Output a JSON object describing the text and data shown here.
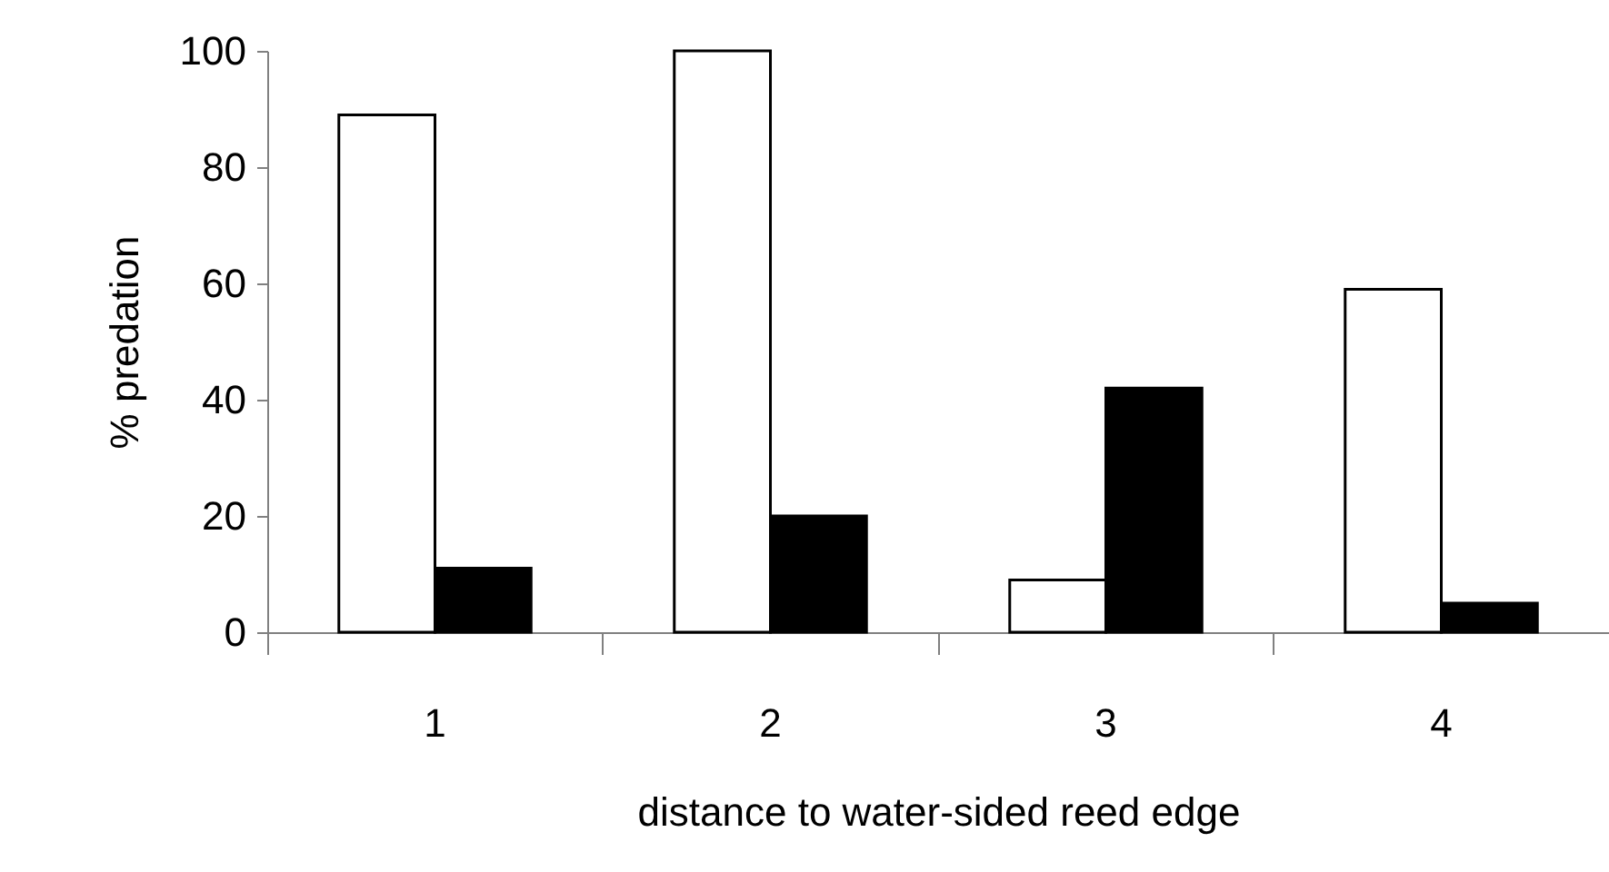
{
  "chart_data": {
    "type": "bar",
    "xlabel": "distance to water-sided reed edge",
    "ylabel": "% predation",
    "categories": [
      "1",
      "2",
      "3",
      "4"
    ],
    "series": [
      {
        "color": "#ffffff",
        "values": [
          89,
          100,
          9,
          59
        ]
      },
      {
        "color": "#000000",
        "values": [
          11,
          20,
          42,
          5
        ]
      }
    ],
    "ylim": [
      0,
      100
    ],
    "yticks": [
      0,
      20,
      40,
      60,
      80,
      100
    ],
    "grid": false,
    "legend": false
  }
}
